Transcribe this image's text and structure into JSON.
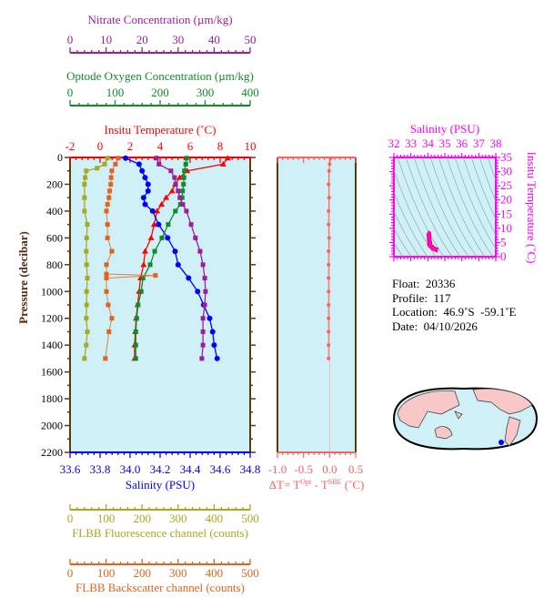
{
  "chart_data": [
    {
      "type": "line",
      "ylabel": "Pressure (decibar)",
      "ylim": [
        2200,
        0
      ],
      "yticks": [
        0,
        200,
        400,
        600,
        800,
        1000,
        1200,
        1400,
        1600,
        1800,
        2000,
        2200
      ],
      "grid": false,
      "axes": {
        "nitrate": {
          "title": "Nitrate Concentration (µm/kg)",
          "range": [
            0,
            50
          ],
          "ticks": [
            0,
            10,
            20,
            30,
            40,
            50
          ],
          "color": "#9b1f9b"
        },
        "oxygen": {
          "title": "Optode Oxygen Concentration (µm/kg)",
          "range": [
            0,
            400
          ],
          "ticks": [
            0,
            100,
            200,
            300,
            400
          ],
          "color": "#118a2a"
        },
        "temperature": {
          "title": "Insitu Temperature (˚C)",
          "range": [
            -2,
            10
          ],
          "ticks": [
            -2,
            0,
            2,
            4,
            6,
            8,
            10
          ],
          "color": "#ff0000"
        },
        "salinity": {
          "title": "Salinity (PSU)",
          "range": [
            33.6,
            34.8
          ],
          "ticks": [
            "33.6",
            "33.8",
            "34.0",
            "34.2",
            "34.4",
            "34.6",
            "34.8"
          ],
          "color": "#0000ff"
        },
        "fluorescence": {
          "title": "FLBB Fluorescence channel (counts)",
          "range": [
            0,
            500
          ],
          "ticks": [
            0,
            100,
            200,
            300,
            400,
            500
          ],
          "color": "#a8a822"
        },
        "backscatter": {
          "title": "FLBB Backscatter channel (counts)",
          "range": [
            0,
            500
          ],
          "ticks": [
            0,
            100,
            200,
            300,
            400,
            500
          ],
          "color": "#e0641e"
        }
      },
      "series": [
        {
          "axis": "temperature",
          "marker": "triangle",
          "points": [
            [
              5,
              8.5
            ],
            [
              50,
              8.2
            ],
            [
              100,
              5.8
            ],
            [
              150,
              5.3
            ],
            [
              200,
              5.0
            ],
            [
              250,
              4.8
            ],
            [
              300,
              4.4
            ],
            [
              350,
              4.1
            ],
            [
              400,
              3.8
            ],
            [
              500,
              3.6
            ],
            [
              600,
              3.4
            ],
            [
              700,
              3.0
            ],
            [
              800,
              2.9
            ],
            [
              900,
              2.7
            ],
            [
              1000,
              2.6
            ],
            [
              1100,
              2.5
            ],
            [
              1200,
              2.4
            ],
            [
              1300,
              2.35
            ],
            [
              1400,
              2.3
            ],
            [
              1500,
              2.3
            ]
          ]
        },
        {
          "axis": "salinity",
          "marker": "circle",
          "points": [
            [
              5,
              33.97
            ],
            [
              50,
              34.06
            ],
            [
              100,
              34.08
            ],
            [
              150,
              34.1
            ],
            [
              200,
              34.12
            ],
            [
              250,
              34.12
            ],
            [
              300,
              34.09
            ],
            [
              350,
              34.1
            ],
            [
              400,
              34.15
            ],
            [
              500,
              34.19
            ],
            [
              600,
              34.25
            ],
            [
              700,
              34.3
            ],
            [
              800,
              34.32
            ],
            [
              900,
              34.39
            ],
            [
              1000,
              34.45
            ],
            [
              1100,
              34.49
            ],
            [
              1200,
              34.53
            ],
            [
              1300,
              34.55
            ],
            [
              1400,
              34.56
            ],
            [
              1500,
              34.58
            ]
          ]
        },
        {
          "axis": "oxygen",
          "marker": "square",
          "points": [
            [
              5,
              259
            ],
            [
              50,
              257
            ],
            [
              100,
              254
            ],
            [
              150,
              253
            ],
            [
              200,
              252
            ],
            [
              250,
              250
            ],
            [
              300,
              249
            ],
            [
              350,
              245
            ],
            [
              400,
              234
            ],
            [
              500,
              218
            ],
            [
              600,
              204
            ],
            [
              700,
              188
            ],
            [
              800,
              178
            ],
            [
              900,
              162
            ],
            [
              1000,
              158
            ],
            [
              1100,
              151
            ],
            [
              1200,
              148
            ],
            [
              1300,
              146
            ],
            [
              1400,
              146
            ],
            [
              1500,
              146
            ]
          ]
        },
        {
          "axis": "nitrate",
          "marker": "square",
          "points": [
            [
              5,
              24
            ],
            [
              50,
              24.7
            ],
            [
              100,
              28
            ],
            [
              150,
              29
            ],
            [
              200,
              29.3
            ],
            [
              250,
              30
            ],
            [
              300,
              30.5
            ],
            [
              350,
              31.3
            ],
            [
              400,
              32.3
            ],
            [
              500,
              33.6
            ],
            [
              600,
              34.8
            ],
            [
              700,
              36.1
            ],
            [
              800,
              36.9
            ],
            [
              900,
              37.4
            ],
            [
              1000,
              37.6
            ],
            [
              1100,
              37.4
            ],
            [
              1200,
              36.9
            ],
            [
              1300,
              36.9
            ],
            [
              1400,
              36.9
            ],
            [
              1500,
              36.6
            ]
          ]
        },
        {
          "axis": "fluorescence",
          "marker": "square",
          "points": [
            [
              5,
              104
            ],
            [
              50,
              96
            ],
            [
              80,
              75
            ],
            [
              100,
              45
            ],
            [
              150,
              42
            ],
            [
              200,
              40
            ],
            [
              300,
              40
            ],
            [
              400,
              40
            ],
            [
              500,
              48
            ],
            [
              600,
              46
            ],
            [
              700,
              45
            ],
            [
              800,
              46
            ],
            [
              900,
              48
            ],
            [
              1000,
              46
            ],
            [
              1100,
              46
            ],
            [
              1200,
              45
            ],
            [
              1300,
              48
            ],
            [
              1400,
              45
            ],
            [
              1500,
              40
            ]
          ]
        },
        {
          "axis": "backscatter",
          "marker": "square",
          "points": [
            [
              5,
              134
            ],
            [
              50,
              126
            ],
            [
              100,
              116
            ],
            [
              150,
              114
            ],
            [
              200,
              113
            ],
            [
              250,
              110
            ],
            [
              300,
              108
            ],
            [
              350,
              104
            ],
            [
              400,
              101
            ],
            [
              500,
              104
            ],
            [
              600,
              104
            ],
            [
              700,
              116
            ],
            [
              800,
              101
            ],
            [
              870,
              101
            ],
            [
              880,
              237
            ],
            [
              900,
              101
            ],
            [
              1000,
              101
            ],
            [
              1100,
              106
            ],
            [
              1200,
              116
            ],
            [
              1300,
              108
            ],
            [
              1500,
              98
            ]
          ]
        }
      ]
    },
    {
      "type": "line",
      "xlabel": "ΔT= T^Opt - T^SBE (˚C)",
      "xlabel_parts": {
        "lead": "ΔT= T",
        "sup1": "Opt",
        "mid": " - T",
        "sup2": "SBE",
        "tail": " (˚C)"
      },
      "xlim": [
        -1.0,
        0.5
      ],
      "xticks": [
        "-1.0",
        "-0.5",
        "0.0",
        "0.5"
      ],
      "ylim": [
        2200,
        0
      ],
      "color": "#ff6060",
      "points": [
        [
          5,
          0.02
        ],
        [
          50,
          0.0
        ],
        [
          100,
          -0.01
        ],
        [
          200,
          -0.02
        ],
        [
          300,
          -0.01
        ],
        [
          400,
          -0.02
        ],
        [
          500,
          -0.02
        ],
        [
          600,
          -0.01
        ],
        [
          700,
          -0.02
        ],
        [
          800,
          -0.02
        ],
        [
          900,
          -0.02
        ],
        [
          1000,
          -0.02
        ],
        [
          1100,
          -0.02
        ],
        [
          1200,
          -0.02
        ],
        [
          1300,
          -0.02
        ],
        [
          1400,
          -0.02
        ],
        [
          1500,
          -0.02
        ]
      ]
    },
    {
      "type": "scatter",
      "title": "Salinity (PSU)",
      "xlim": [
        32,
        38
      ],
      "xticks": [
        32,
        33,
        34,
        35,
        36,
        37,
        38
      ],
      "ylabel": "Insitu Temperature (˚C)",
      "ylim": [
        0,
        35
      ],
      "yticks": [
        0,
        5,
        10,
        15,
        20,
        25,
        30,
        35
      ],
      "color": "#ff00ff",
      "density_contours": true
    }
  ],
  "info": {
    "float": "Float:  20336",
    "profile": "Profile:  117",
    "location": "Location:  46.9˚S  -59.1˚E",
    "date": "Date:  04/10/2026"
  },
  "map": {
    "marker_color": "#0000ff",
    "land_color": "#f8c8c8",
    "ocean_color": "#d0f0f8"
  }
}
